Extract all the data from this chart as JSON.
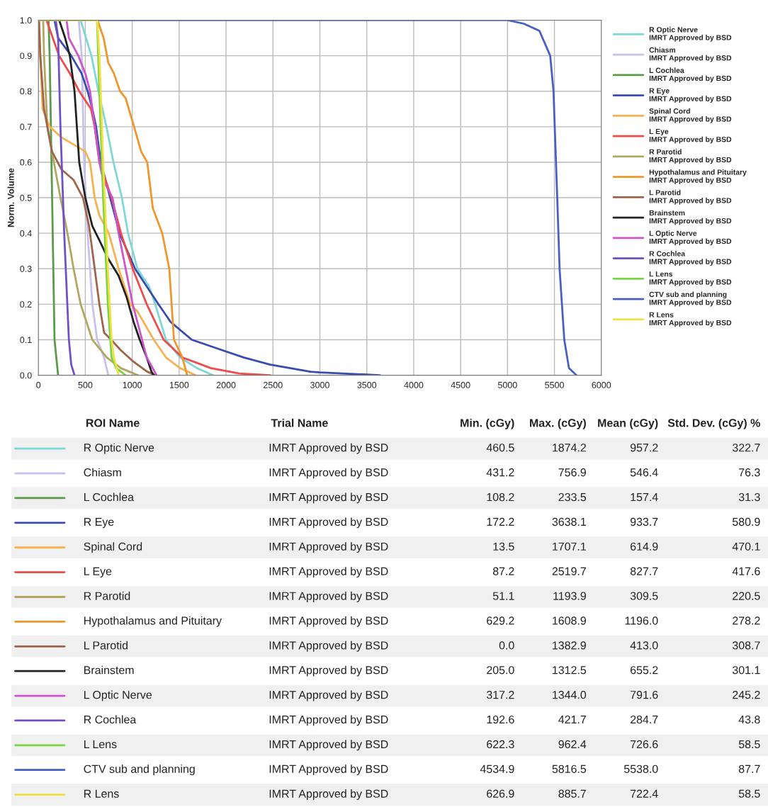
{
  "chart_data": {
    "type": "line",
    "ylabel": "Norm. Volume",
    "xlim": [
      0,
      6000
    ],
    "ylim": [
      0,
      1
    ],
    "xticks": [
      0,
      500,
      1000,
      1500,
      2000,
      2500,
      3000,
      3500,
      4000,
      4500,
      5000,
      5500,
      6000
    ],
    "yticks": [
      {
        "value": 0,
        "label": "0.0"
      },
      {
        "value": 0.1,
        "label": "0.1"
      },
      {
        "value": 0.2,
        "label": "0.2"
      },
      {
        "value": 0.3,
        "label": "0.3"
      },
      {
        "value": 0.4,
        "label": "0.4"
      },
      {
        "value": 0.5,
        "label": "0.5"
      },
      {
        "value": 0.6,
        "label": "0.6"
      },
      {
        "value": 0.7,
        "label": "0.7"
      },
      {
        "value": 0.8,
        "label": "0.8"
      },
      {
        "value": 0.9,
        "label": "0.9"
      },
      {
        "value": 1,
        "label": "1.0"
      }
    ],
    "grid": true,
    "legend": "right",
    "marker": "none",
    "line_style": "solid",
    "series": [
      {
        "name": "R Optic Nerve\nIMRT Approved by BSD",
        "color": "#7fd8d8",
        "x": [
          0,
          450,
          565,
          640,
          725,
          800,
          890,
          955,
          1055,
          1180,
          1245,
          1360,
          1510,
          1690,
          1860
        ],
        "values": [
          1,
          1,
          0.9,
          0.8,
          0.7,
          0.6,
          0.5,
          0.4,
          0.3,
          0.25,
          0.2,
          0.1,
          0.05,
          0.02,
          0
        ]
      },
      {
        "name": "Chiasm\nIMRT Approved by BSD",
        "color": "#c8c0ee",
        "x": [
          0,
          430,
          462,
          487,
          525,
          575,
          626,
          700,
          745
        ],
        "values": [
          1,
          1,
          0.9,
          0.6,
          0.4,
          0.2,
          0.1,
          0.05,
          0
        ]
      },
      {
        "name": "L Cochlea\nIMRT Approved by BSD",
        "color": "#5a9a4a",
        "x": [
          0,
          108,
          120,
          146,
          172,
          210
        ],
        "values": [
          1,
          1,
          0.9,
          0.5,
          0.1,
          0
        ]
      },
      {
        "name": "R Eye\nIMRT Approved by BSD",
        "color": "#3a4bb0",
        "x": [
          0,
          172,
          210,
          350,
          460,
          525,
          575,
          615,
          665,
          765,
          865,
          1030,
          1280,
          1410,
          1635,
          1965,
          2190,
          2470,
          2900,
          3000,
          3500,
          3640
        ],
        "values": [
          1,
          1,
          0.95,
          0.9,
          0.85,
          0.8,
          0.75,
          0.7,
          0.6,
          0.5,
          0.4,
          0.3,
          0.2,
          0.15,
          0.1,
          0.07,
          0.05,
          0.03,
          0.01,
          0.008,
          0.002,
          0
        ]
      },
      {
        "name": "Spinal Cord\nIMRT Approved by BSD",
        "color": "#f6b24e",
        "x": [
          0,
          10,
          20,
          45,
          120,
          245,
          375,
          500,
          550,
          600,
          650,
          750,
          855,
          980,
          1055,
          1230,
          1360,
          1510,
          1675
        ],
        "values": [
          1,
          1,
          0.9,
          0.75,
          0.7,
          0.67,
          0.65,
          0.63,
          0.6,
          0.5,
          0.45,
          0.4,
          0.3,
          0.2,
          0.18,
          0.1,
          0.05,
          0.02,
          0
        ]
      },
      {
        "name": "L Eye\nIMRT Approved by BSD",
        "color": "#ee4b4b",
        "x": [
          0,
          87,
          220,
          335,
          435,
          560,
          600,
          650,
          780,
          880,
          1005,
          1155,
          1335,
          1535,
          1840,
          2140,
          2470
        ],
        "values": [
          1,
          1,
          0.9,
          0.85,
          0.8,
          0.75,
          0.7,
          0.6,
          0.5,
          0.4,
          0.3,
          0.2,
          0.1,
          0.05,
          0.02,
          0.005,
          0
        ]
      },
      {
        "name": "R Parotid\nIMRT Approved by BSD",
        "color": "#b0a860",
        "x": [
          0,
          51,
          60,
          95,
          235,
          310,
          375,
          450,
          575,
          730,
          880,
          1060
        ],
        "values": [
          1,
          1,
          0.9,
          0.7,
          0.5,
          0.4,
          0.3,
          0.2,
          0.1,
          0.05,
          0.02,
          0
        ]
      },
      {
        "name": "Hypothalamus and Pituitary\nIMRT Approved by BSD",
        "color": "#f0962a",
        "x": [
          0,
          630,
          695,
          745,
          805,
          870,
          930,
          1020,
          1095,
          1160,
          1220,
          1320,
          1395,
          1445,
          1535,
          1585
        ],
        "values": [
          1,
          1,
          0.95,
          0.88,
          0.85,
          0.8,
          0.78,
          0.7,
          0.63,
          0.6,
          0.47,
          0.4,
          0.3,
          0.1,
          0.05,
          0
        ]
      },
      {
        "name": "L Parotid\nIMRT Approved by BSD",
        "color": "#a0644a",
        "x": [
          0,
          5,
          20,
          60,
          95,
          145,
          245,
          375,
          475,
          540,
          600,
          650,
          700,
          775,
          880,
          1005,
          1160,
          1245
        ],
        "values": [
          1,
          1,
          0.9,
          0.75,
          0.7,
          0.63,
          0.58,
          0.55,
          0.5,
          0.42,
          0.3,
          0.2,
          0.12,
          0.1,
          0.07,
          0.04,
          0.01,
          0
        ]
      },
      {
        "name": "Brainstem\nIMRT Approved by BSD",
        "color": "#222222",
        "x": [
          0,
          222,
          285,
          335,
          385,
          410,
          435,
          500,
          575,
          650,
          740,
          855,
          940,
          1015,
          1080,
          1155,
          1205,
          1230
        ],
        "values": [
          1,
          1,
          0.95,
          0.9,
          0.8,
          0.7,
          0.6,
          0.5,
          0.42,
          0.38,
          0.33,
          0.28,
          0.22,
          0.15,
          0.1,
          0.05,
          0.01,
          0
        ]
      },
      {
        "name": "L Optic Nerve\nIMRT Approved by BSD",
        "color": "#cc55cc",
        "x": [
          0,
          300,
          325,
          425,
          500,
          550,
          600,
          650,
          690,
          790,
          855,
          930,
          1005,
          1105,
          1155,
          1260
        ],
        "values": [
          1,
          1,
          0.95,
          0.9,
          0.85,
          0.8,
          0.7,
          0.6,
          0.55,
          0.5,
          0.4,
          0.3,
          0.2,
          0.1,
          0.05,
          0
        ]
      },
      {
        "name": "R Cochlea\nIMRT Approved by BSD",
        "color": "#7050c8",
        "x": [
          0,
          185,
          210,
          235,
          275,
          325,
          350,
          385
        ],
        "values": [
          1,
          1,
          0.95,
          0.7,
          0.4,
          0.1,
          0.03,
          0
        ]
      },
      {
        "name": "L Lens\nIMRT Approved by BSD",
        "color": "#7cd444",
        "x": [
          0,
          625,
          650,
          690,
          740,
          780,
          830,
          930
        ],
        "values": [
          1,
          1,
          0.8,
          0.5,
          0.2,
          0.05,
          0.02,
          0
        ]
      },
      {
        "name": "CTV sub and planning\nIMRT Approved by BSD",
        "color": "#4a5fc4",
        "x": [
          0,
          5000,
          5175,
          5340,
          5455,
          5490,
          5530,
          5555,
          5580,
          5605,
          5655,
          5735
        ],
        "values": [
          1,
          1,
          0.99,
          0.97,
          0.9,
          0.8,
          0.5,
          0.3,
          0.2,
          0.1,
          0.02,
          0
        ]
      },
      {
        "name": "R Lens\nIMRT Approved by BSD",
        "color": "#f0e040",
        "x": [
          0,
          627,
          650,
          690,
          740,
          780,
          805,
          855
        ],
        "values": [
          1,
          1,
          0.9,
          0.6,
          0.3,
          0.1,
          0.05,
          0
        ]
      }
    ],
    "annotations": [
      "ROI Name",
      "Trial Name",
      "Min. (cGy)",
      "Max. (cGy)",
      "Mean (cGy)",
      "Std. Dev. (cGy) %",
      "R Optic Nerve",
      "IMRT Approved by BSD",
      "460.5",
      "1874.2",
      "957.2",
      "322.7",
      "Chiasm",
      "IMRT Approved by BSD",
      "431.2",
      "756.9",
      "546.4",
      "76.3",
      "L Cochlea",
      "IMRT Approved by BSD",
      "108.2",
      "233.5",
      "157.4",
      "31.3",
      "R Eye",
      "IMRT Approved by BSD",
      "172.2",
      "3638.1",
      "933.7",
      "580.9",
      "Spinal Cord",
      "IMRT Approved by BSD",
      "13.5",
      "1707.1",
      "614.9",
      "470.1",
      "L Eye",
      "IMRT Approved by BSD",
      "87.2",
      "2519.7",
      "827.7",
      "417.6",
      "R Parotid",
      "IMRT Approved by BSD",
      "51.1",
      "1193.9",
      "309.5",
      "220.5",
      "Hypothalamus and Pituitary",
      "IMRT Approved by BSD",
      "629.2",
      "1608.9",
      "1196.0",
      "278.2",
      "L Parotid",
      "IMRT Approved by BSD",
      "0.0",
      "1382.9",
      "413.0",
      "308.7",
      "Brainstem",
      "IMRT Approved by BSD",
      "205.0",
      "1312.5",
      "655.2",
      "301.1",
      "L Optic Nerve",
      "IMRT Approved by BSD",
      "317.2",
      "1344.0",
      "791.6",
      "245.2",
      "R Cochlea",
      "IMRT Approved by BSD",
      "192.6",
      "421.7",
      "284.7",
      "43.8",
      "L Lens",
      "IMRT Approved by BSD",
      "622.3",
      "962.4",
      "726.6",
      "58.5",
      "CTV sub and planning",
      "IMRT Approved by BSD",
      "4534.9",
      "5816.5",
      "5538.0",
      "87.7",
      "R Lens",
      "IMRT Approved by BSD",
      "626.9",
      "885.7",
      "722.4",
      "58.5"
    ]
  }
}
